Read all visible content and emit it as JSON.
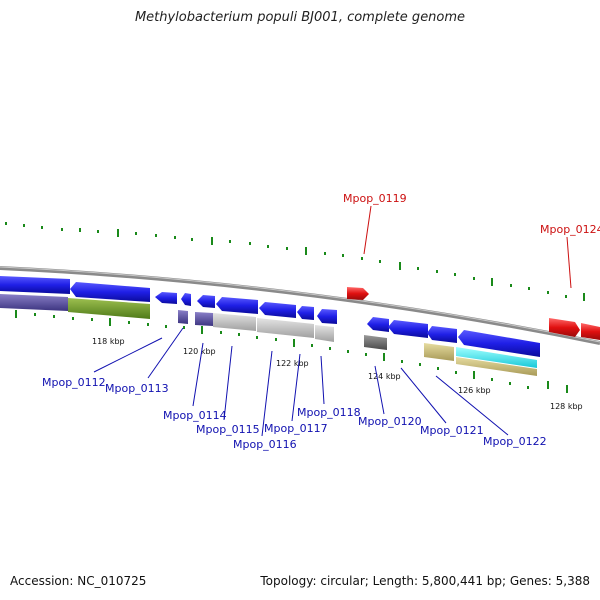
{
  "title": "Methylobacterium populi BJ001, complete genome",
  "footer": {
    "accession": "Accession: NC_010725",
    "topology": "Topology: circular; Length: 5,800,441 bp; Genes: 5,388"
  },
  "colors": {
    "forward_gene": "#1f1fe6",
    "highlight_gene": "#e01010",
    "backbone": "#8a8a8a",
    "tick": "#1a8a1a",
    "gene_label": "#1010b0",
    "highlight_label": "#cc1010"
  },
  "scale_labels": [
    "118 kbp",
    "120 kbp",
    "122 kbp",
    "124 kbp",
    "126 kbp",
    "128 kbp"
  ],
  "gene_labels": [
    {
      "text": "Mpop_0112",
      "color": "gene"
    },
    {
      "text": "Mpop_0113",
      "color": "gene"
    },
    {
      "text": "Mpop_0114",
      "color": "gene"
    },
    {
      "text": "Mpop_0115",
      "color": "gene"
    },
    {
      "text": "Mpop_0116",
      "color": "gene"
    },
    {
      "text": "Mpop_0117",
      "color": "gene"
    },
    {
      "text": "Mpop_0118",
      "color": "gene"
    },
    {
      "text": "Mpop_0119",
      "color": "highlight"
    },
    {
      "text": "Mpop_0120",
      "color": "gene"
    },
    {
      "text": "Mpop_0121",
      "color": "gene"
    },
    {
      "text": "Mpop_0122",
      "color": "gene"
    },
    {
      "text": "Mpop_0124",
      "color": "highlight"
    }
  ]
}
